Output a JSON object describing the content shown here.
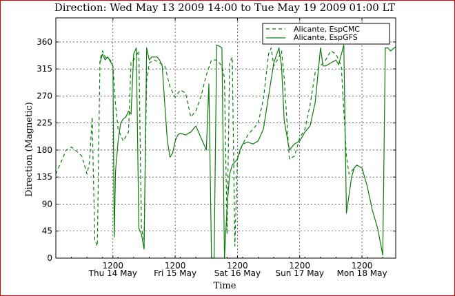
{
  "chart_data": {
    "type": "line",
    "title": "Direction: Wed May 13 2009 14:00 to Tue May 19 2009 01:00 LT",
    "xlabel": "Time",
    "ylabel": "Direction (Magnetic)",
    "xlim": [
      "2009-05-13 14:00",
      "2009-05-19 01:00"
    ],
    "ylim": [
      0,
      400
    ],
    "yticks": [
      0,
      45,
      90,
      135,
      180,
      225,
      270,
      315,
      360
    ],
    "xticks": [
      {
        "time": "2009-05-14 12:00",
        "hour": "1200",
        "day": "Thu 14 May"
      },
      {
        "time": "2009-05-15 12:00",
        "hour": "1200",
        "day": "Fri 15 May"
      },
      {
        "time": "2009-05-16 12:00",
        "hour": "1200",
        "day": "Sat 16 May"
      },
      {
        "time": "2009-05-17 12:00",
        "hour": "1200",
        "day": "Sun 17 May"
      },
      {
        "time": "2009-05-18 12:00",
        "hour": "1200",
        "day": "Mon 18 May"
      }
    ],
    "grid": true,
    "legend_position": "top-right",
    "series": [
      {
        "name": "Alicante, EspCMC",
        "style": "dashed",
        "color": "#0a7a0a",
        "points": [
          [
            "2009-05-13 14:00",
            140
          ],
          [
            "2009-05-13 16:00",
            160
          ],
          [
            "2009-05-13 18:00",
            180
          ],
          [
            "2009-05-13 20:00",
            185
          ],
          [
            "2009-05-13 22:00",
            178
          ],
          [
            "2009-05-14 00:00",
            170
          ],
          [
            "2009-05-14 02:00",
            140
          ],
          [
            "2009-05-14 03:00",
            160
          ],
          [
            "2009-05-14 04:00",
            235
          ],
          [
            "2009-05-14 05:00",
            30
          ],
          [
            "2009-05-14 06:00",
            20
          ],
          [
            "2009-05-14 07:00",
            330
          ],
          [
            "2009-05-14 08:00",
            345
          ],
          [
            "2009-05-14 09:00",
            335
          ],
          [
            "2009-05-14 11:00",
            330
          ],
          [
            "2009-05-14 12:00",
            320
          ],
          [
            "2009-05-14 13:00",
            255
          ],
          [
            "2009-05-14 14:00",
            215
          ],
          [
            "2009-05-14 16:00",
            195
          ],
          [
            "2009-05-14 18:00",
            210
          ],
          [
            "2009-05-14 19:00",
            328
          ],
          [
            "2009-05-14 20:00",
            330
          ],
          [
            "2009-05-14 22:00",
            345
          ],
          [
            "2009-05-14 23:00",
            50
          ],
          [
            "2009-05-15 00:00",
            30
          ],
          [
            "2009-05-15 01:00",
            295
          ],
          [
            "2009-05-15 02:00",
            325
          ],
          [
            "2009-05-15 04:00",
            330
          ],
          [
            "2009-05-15 06:00",
            325
          ],
          [
            "2009-05-15 08:00",
            320
          ],
          [
            "2009-05-15 10:00",
            285
          ],
          [
            "2009-05-15 12:00",
            268
          ],
          [
            "2009-05-15 14:00",
            280
          ],
          [
            "2009-05-15 16:00",
            275
          ],
          [
            "2009-05-15 18:00",
            235
          ],
          [
            "2009-05-15 20:00",
            245
          ],
          [
            "2009-05-15 22:00",
            270
          ],
          [
            "2009-05-16 00:00",
            305
          ],
          [
            "2009-05-16 02:00",
            330
          ],
          [
            "2009-05-16 04:00",
            330
          ],
          [
            "2009-05-16 06:00",
            320
          ],
          [
            "2009-05-16 07:00",
            300
          ],
          [
            "2009-05-16 08:00",
            40
          ],
          [
            "2009-05-16 09:00",
            325
          ],
          [
            "2009-05-16 10:00",
            335
          ],
          [
            "2009-05-16 11:00",
            20
          ],
          [
            "2009-05-16 12:00",
            165
          ],
          [
            "2009-05-16 14:00",
            190
          ],
          [
            "2009-05-16 16:00",
            205
          ],
          [
            "2009-05-16 18:00",
            215
          ],
          [
            "2009-05-16 20:00",
            225
          ],
          [
            "2009-05-16 22:00",
            265
          ],
          [
            "2009-05-17 00:00",
            340
          ],
          [
            "2009-05-17 01:00",
            350
          ],
          [
            "2009-05-17 02:00",
            320
          ],
          [
            "2009-05-17 04:00",
            335
          ],
          [
            "2009-05-17 05:00",
            345
          ],
          [
            "2009-05-17 06:00",
            300
          ],
          [
            "2009-05-17 08:00",
            165
          ],
          [
            "2009-05-17 10:00",
            170
          ],
          [
            "2009-05-17 12:00",
            200
          ],
          [
            "2009-05-17 14:00",
            215
          ],
          [
            "2009-05-17 16:00",
            255
          ],
          [
            "2009-05-17 18:00",
            310
          ],
          [
            "2009-05-17 20:00",
            320
          ],
          [
            "2009-05-17 22:00",
            330
          ],
          [
            "2009-05-18 00:00",
            345
          ],
          [
            "2009-05-18 02:00",
            340
          ],
          [
            "2009-05-18 04:00",
            320
          ],
          [
            "2009-05-18 06:00",
            170
          ],
          [
            "2009-05-18 07:00",
            140
          ],
          [
            "2009-05-18 09:00",
            150
          ]
        ]
      },
      {
        "name": "Alicante, EspGFS",
        "style": "solid",
        "color": "#0a7a0a",
        "points": [
          [
            "2009-05-14 07:00",
            325
          ],
          [
            "2009-05-14 08:00",
            340
          ],
          [
            "2009-05-14 09:00",
            330
          ],
          [
            "2009-05-14 10:00",
            335
          ],
          [
            "2009-05-14 12:00",
            320
          ],
          [
            "2009-05-14 12:30",
            35
          ],
          [
            "2009-05-14 13:00",
            145
          ],
          [
            "2009-05-14 14:00",
            195
          ],
          [
            "2009-05-14 15:00",
            225
          ],
          [
            "2009-05-14 16:00",
            232
          ],
          [
            "2009-05-14 17:00",
            235
          ],
          [
            "2009-05-14 18:00",
            245
          ],
          [
            "2009-05-14 19:00",
            240
          ],
          [
            "2009-05-14 20:00",
            340
          ],
          [
            "2009-05-14 21:00",
            350
          ],
          [
            "2009-05-14 22:00",
            50
          ],
          [
            "2009-05-14 23:00",
            40
          ],
          [
            "2009-05-15 00:00",
            15
          ],
          [
            "2009-05-15 01:00",
            350
          ],
          [
            "2009-05-15 02:00",
            330
          ],
          [
            "2009-05-15 03:00",
            335
          ],
          [
            "2009-05-15 04:00",
            335
          ],
          [
            "2009-05-15 05:00",
            335
          ],
          [
            "2009-05-15 06:00",
            330
          ],
          [
            "2009-05-15 07:00",
            320
          ],
          [
            "2009-05-15 08:00",
            255
          ],
          [
            "2009-05-15 09:00",
            195
          ],
          [
            "2009-05-15 10:00",
            168
          ],
          [
            "2009-05-15 11:00",
            175
          ],
          [
            "2009-05-15 12:00",
            195
          ],
          [
            "2009-05-15 13:00",
            205
          ],
          [
            "2009-05-15 14:00",
            208
          ],
          [
            "2009-05-15 16:00",
            205
          ],
          [
            "2009-05-15 18:00",
            210
          ],
          [
            "2009-05-15 20:00",
            220
          ],
          [
            "2009-05-15 22:00",
            200
          ],
          [
            "2009-05-16 00:00",
            180
          ],
          [
            "2009-05-16 01:00",
            290
          ],
          [
            "2009-05-16 02:00",
            0
          ],
          [
            "2009-05-16 03:00",
            0
          ],
          [
            "2009-05-16 04:00",
            355
          ],
          [
            "2009-05-16 05:00",
            353
          ],
          [
            "2009-05-16 06:00",
            350
          ],
          [
            "2009-05-16 07:00",
            0
          ],
          [
            "2009-05-16 08:00",
            85
          ],
          [
            "2009-05-16 09:00",
            140
          ],
          [
            "2009-05-16 10:00",
            155
          ],
          [
            "2009-05-16 11:00",
            160
          ],
          [
            "2009-05-16 12:00",
            165
          ],
          [
            "2009-05-16 13:00",
            180
          ],
          [
            "2009-05-16 14:00",
            190
          ],
          [
            "2009-05-16 16:00",
            193
          ],
          [
            "2009-05-16 18:00",
            190
          ],
          [
            "2009-05-16 20:00",
            195
          ],
          [
            "2009-05-16 22:00",
            215
          ],
          [
            "2009-05-17 00:00",
            270
          ],
          [
            "2009-05-17 02:00",
            325
          ],
          [
            "2009-05-17 04:00",
            350
          ],
          [
            "2009-05-17 05:00",
            320
          ],
          [
            "2009-05-17 06:00",
            230
          ],
          [
            "2009-05-17 08:00",
            180
          ],
          [
            "2009-05-17 10:00",
            190
          ],
          [
            "2009-05-17 12:00",
            195
          ],
          [
            "2009-05-17 14:00",
            210
          ],
          [
            "2009-05-17 16:00",
            220
          ],
          [
            "2009-05-17 18:00",
            260
          ],
          [
            "2009-05-17 20:00",
            350
          ],
          [
            "2009-05-17 21:00",
            320
          ],
          [
            "2009-05-17 22:00",
            320
          ],
          [
            "2009-05-18 00:00",
            325
          ],
          [
            "2009-05-18 02:00",
            330
          ],
          [
            "2009-05-18 03:00",
            322
          ],
          [
            "2009-05-18 05:00",
            355
          ],
          [
            "2009-05-18 06:00",
            75
          ],
          [
            "2009-05-18 07:00",
            105
          ],
          [
            "2009-05-18 08:00",
            135
          ],
          [
            "2009-05-18 09:00",
            150
          ],
          [
            "2009-05-18 10:00",
            155
          ],
          [
            "2009-05-18 12:00",
            150
          ],
          [
            "2009-05-18 14:00",
            120
          ],
          [
            "2009-05-18 16:00",
            80
          ],
          [
            "2009-05-18 18:00",
            50
          ],
          [
            "2009-05-18 20:00",
            5
          ],
          [
            "2009-05-18 21:00",
            350
          ],
          [
            "2009-05-18 22:00",
            350
          ],
          [
            "2009-05-18 23:00",
            345
          ],
          [
            "2009-05-19 01:00",
            352
          ]
        ]
      }
    ]
  }
}
